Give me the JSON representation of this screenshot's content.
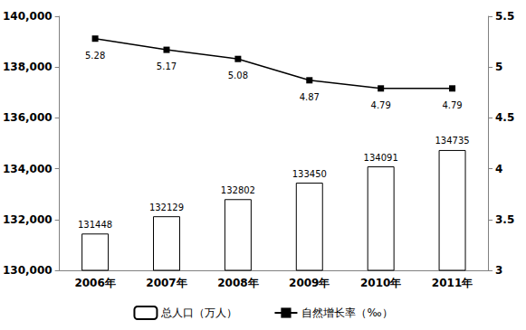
{
  "chart_data": {
    "type": "bar",
    "categories": [
      "2006年",
      "2007年",
      "2008年",
      "2009年",
      "2010年",
      "2011年"
    ],
    "series": [
      {
        "name": "总人口（万人）",
        "type": "bar",
        "color": "#ffffff",
        "values": [
          131448,
          132129,
          132802,
          133450,
          134091,
          134735
        ]
      },
      {
        "name": "自然增长率（‰）",
        "type": "line",
        "axis": "y2",
        "color": "#000000",
        "marker": "square",
        "values": [
          5.28,
          5.17,
          5.08,
          4.87,
          4.79,
          4.79
        ]
      }
    ],
    "ylim": [
      130000,
      140000
    ],
    "yticks": [
      130000,
      132000,
      134000,
      136000,
      138000,
      140000
    ],
    "y2lim": [
      3,
      5.5
    ],
    "y2ticks": [
      3,
      3.5,
      4,
      4.5,
      5,
      5.5
    ],
    "data_labels": true,
    "legend": "bottom",
    "grid": false
  }
}
